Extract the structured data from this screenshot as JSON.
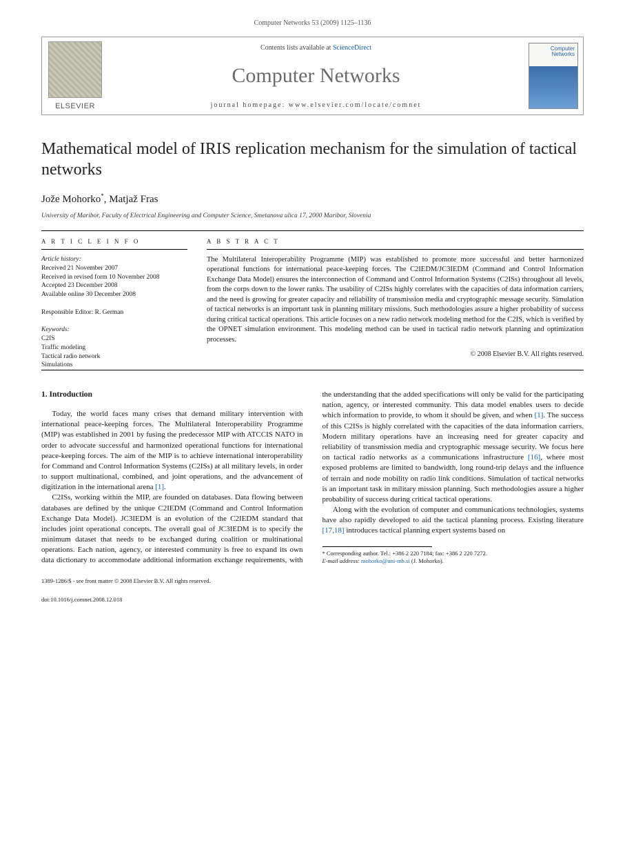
{
  "page_header": "Computer Networks 53 (2009) 1125–1136",
  "banner": {
    "contents_prefix": "Contents lists available at ",
    "contents_link": "ScienceDirect",
    "journal_title": "Computer Networks",
    "homepage_prefix": "journal homepage: ",
    "homepage_url": "www.elsevier.com/locate/comnet",
    "publisher": "ELSEVIER",
    "cover_label_top": "Computer",
    "cover_label_bottom": "Networks"
  },
  "article": {
    "title": "Mathematical model of IRIS replication mechanism for the simulation of tactical networks",
    "authors_html": "Jože Mohorko *, Matjaž Fras",
    "author1": "Jože Mohorko",
    "author1_mark": "*",
    "author_sep": ", ",
    "author2": "Matjaž Fras",
    "affiliation": "University of Maribor, Faculty of Electrical Engineering and Computer Science, Smetanova ulica 17, 2000 Maribor, Slovenia"
  },
  "meta": {
    "info_label": "A R T I C L E   I N F O",
    "abstract_label": "A B S T R A C T",
    "history_head": "Article history:",
    "history_received": "Received 21 November 2007",
    "history_revised": "Received in revised form 10 November 2008",
    "history_accepted": "Accepted 23 December 2008",
    "history_online": "Available online 30 December 2008",
    "editor_label": "Responsible Editor: R. German",
    "keywords_head": "Keywords:",
    "keywords": [
      "C2IS",
      "Traffic modeling",
      "Tactical radio network",
      "Simulations"
    ]
  },
  "abstract": {
    "text": "The Multilateral Interoperability Programme (MIP) was established to promote more successful and better harmonized operational functions for international peace-keeping forces. The C2IEDM/JC3IEDM (Command and Control Information Exchange Data Model) ensures the interconnection of Command and Control Information Systems (C2ISs) throughout all levels, from the corps down to the lower ranks. The usability of C2ISs highly correlates with the capacities of data information carriers, and the need is growing for greater capacity and reliability of transmission media and cryptographic message security. Simulation of tactical networks is an important task in planning military missions. Such methodologies assure a higher probability of success during critical tactical operations. This article focuses on a new radio network modeling method for the C2IS, which is verified by the OPNET simulation environment. This modeling method can be used in tactical radio network planning and optimization processes.",
    "copyright": "© 2008 Elsevier B.V. All rights reserved."
  },
  "body": {
    "h_intro": "1. Introduction",
    "p1a": "Today, the world faces many crises that demand military intervention with international peace-keeping forces. The Multilateral Interoperability Programme (MIP) was established in 2001 by fusing the predecessor MIP with ATCCIS NATO in order to advocate successful and harmonized operational functions for international peace-keeping forces. The aim of the MIP is to achieve international interoperability for Command and Control Information Systems (C2ISs) at all military levels, in order to support multinational, combined, and joint operations, and the advancement of digitization in the international arena ",
    "p1_ref1": "[1]",
    "p1b": ".",
    "p2a": "C2ISs, working within the MIP, are founded on databases. Data flowing between databases are defined by the unique C2IEDM (Command and Control Information Exchange Data Model). JC3IEDM is an evolution of the C2IEDM standard that includes joint operational concepts. The overall goal of JC3IEDM is to specify the minimum dataset that needs to be exchanged during coalition or multinational operations. Each nation, agency, or interested community is free to expand its own data dictionary to accommodate additional information exchange requirements, with the understanding that the added specifications will only be valid for the participating nation, agency, or interested community. This data model enables users to decide which information to provide, to whom it should be given, and when ",
    "p2_ref1": "[1]",
    "p2b": ". The success of this C2ISs is highly correlated with the capacities of the data information carriers. Modern military operations have an increasing need for greater capacity and reliability of transmission media and cryptographic message security. We focus here on tactical radio networks as a communications infrastructure ",
    "p2_ref16": "[16]",
    "p2c": ", where most exposed problems are limited to bandwidth, long round-trip delays and the influence of terrain and node mobility on radio link conditions. Simulation of tactical networks is an important task in military mission planning. Such methodologies assure a higher probability of success during critical tactical operations.",
    "p3a": "Along with the evolution of computer and communications technologies, systems have also rapidly developed to aid the tactical planning process. Existing literature ",
    "p3_ref1718": "[17,18]",
    "p3b": " introduces tactical planning expert systems based on"
  },
  "footnote": {
    "corr": "* Corresponding author. Tel.: +386 2 220 7184; fax: +386 2 220 7272.",
    "email_label": "E-mail address:",
    "email": "mohorko@uni-mb.si",
    "email_tail": " (J. Mohorko)."
  },
  "footer": {
    "line1": "1389-1286/$ - see front matter © 2008 Elsevier B.V. All rights reserved.",
    "line2": "doi:10.1016/j.comnet.2008.12.018"
  }
}
